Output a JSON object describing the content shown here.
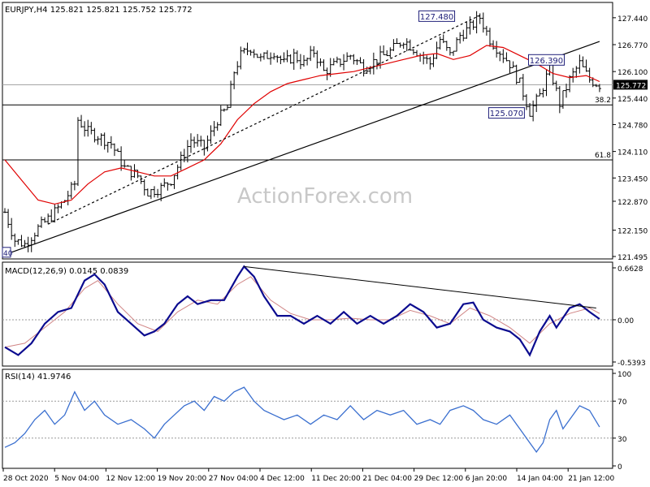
{
  "colors": {
    "background": "#ffffff",
    "frame": "#000000",
    "candles": "#000000",
    "moving_average": "#e00000",
    "macd_main": "#0b0b8f",
    "macd_signal": "#d08585",
    "rsi": "#3a6fcf",
    "grid_dash": "#9a9a9a",
    "watermark": "#c8c8c8",
    "label_box": "#20207a"
  },
  "watermark": "ActionForex.com",
  "chart_data": [
    {
      "type": "candlestick",
      "panel": "price",
      "title": "EURJPY,H4  125.821 125.821 125.752 125.772",
      "y_ticks": [
        "127.440",
        "126.770",
        "126.100",
        "125.440",
        "124.780",
        "124.110",
        "123.450",
        "122.870",
        "122.150",
        "121.495"
      ],
      "ylim": [
        121.495,
        127.72
      ],
      "last_price_label": "125.772",
      "last_price": 125.772,
      "x_range": [
        0,
        180
      ],
      "price_path": [
        [
          0,
          122.6
        ],
        [
          3,
          121.9
        ],
        [
          6,
          121.8
        ],
        [
          10,
          122.2
        ],
        [
          14,
          122.5
        ],
        [
          18,
          122.9
        ],
        [
          21,
          123.3
        ],
        [
          22,
          124.9
        ],
        [
          25,
          124.6
        ],
        [
          28,
          124.5
        ],
        [
          32,
          124.3
        ],
        [
          36,
          123.7
        ],
        [
          40,
          123.5
        ],
        [
          43,
          123.1
        ],
        [
          47,
          123.2
        ],
        [
          50,
          123.4
        ],
        [
          53,
          123.9
        ],
        [
          56,
          124.4
        ],
        [
          60,
          124.2
        ],
        [
          64,
          124.9
        ],
        [
          67,
          125.2
        ],
        [
          69,
          126.1
        ],
        [
          71,
          126.5
        ],
        [
          74,
          126.7
        ],
        [
          77,
          126.4
        ],
        [
          81,
          126.6
        ],
        [
          84,
          126.3
        ],
        [
          87,
          126.5
        ],
        [
          90,
          126.3
        ],
        [
          93,
          126.6
        ],
        [
          96,
          126.1
        ],
        [
          100,
          126.3
        ],
        [
          104,
          126.5
        ],
        [
          108,
          126.2
        ],
        [
          112,
          126.4
        ],
        [
          116,
          126.6
        ],
        [
          120,
          126.9
        ],
        [
          124,
          126.6
        ],
        [
          128,
          126.3
        ],
        [
          131,
          126.9
        ],
        [
          134,
          126.5
        ],
        [
          137,
          127.0
        ],
        [
          140,
          127.2
        ],
        [
          143,
          127.45
        ],
        [
          146,
          126.9
        ],
        [
          149,
          126.6
        ],
        [
          152,
          126.3
        ],
        [
          155,
          125.8
        ],
        [
          158,
          125.1
        ],
        [
          161,
          125.5
        ],
        [
          164,
          126.2
        ],
        [
          167,
          125.3
        ],
        [
          170,
          125.9
        ],
        [
          173,
          126.3
        ],
        [
          176,
          125.9
        ],
        [
          179,
          125.77
        ]
      ],
      "moving_average_path": [
        [
          0,
          123.9
        ],
        [
          5,
          123.4
        ],
        [
          10,
          122.9
        ],
        [
          15,
          122.8
        ],
        [
          20,
          122.9
        ],
        [
          25,
          123.3
        ],
        [
          30,
          123.6
        ],
        [
          35,
          123.7
        ],
        [
          40,
          123.6
        ],
        [
          45,
          123.5
        ],
        [
          50,
          123.5
        ],
        [
          55,
          123.7
        ],
        [
          60,
          123.9
        ],
        [
          65,
          124.3
        ],
        [
          70,
          124.9
        ],
        [
          75,
          125.3
        ],
        [
          80,
          125.6
        ],
        [
          85,
          125.8
        ],
        [
          90,
          125.9
        ],
        [
          95,
          126.0
        ],
        [
          100,
          126.05
        ],
        [
          105,
          126.1
        ],
        [
          110,
          126.2
        ],
        [
          115,
          126.3
        ],
        [
          120,
          126.4
        ],
        [
          125,
          126.5
        ],
        [
          130,
          126.55
        ],
        [
          135,
          126.4
        ],
        [
          140,
          126.5
        ],
        [
          145,
          126.75
        ],
        [
          150,
          126.7
        ],
        [
          155,
          126.5
        ],
        [
          160,
          126.3
        ],
        [
          165,
          126.05
        ],
        [
          170,
          125.95
        ],
        [
          175,
          126.0
        ],
        [
          179,
          125.85
        ]
      ],
      "trendlines": [
        {
          "style": "solid",
          "from": [
            2,
            121.6
          ],
          "to": [
            179,
            126.85
          ]
        },
        {
          "style": "dashed",
          "from": [
            13,
            122.3
          ],
          "to": [
            143,
            127.5
          ]
        }
      ],
      "horizontal_levels": [
        {
          "value": 125.27,
          "label": "38.2"
        },
        {
          "value": 123.9,
          "label": "61.8"
        }
      ],
      "gray_lines": [
        125.772
      ],
      "annotations": [
        {
          "text": "127.480",
          "x": 130,
          "value": 127.48
        },
        {
          "text": "126.390",
          "x": 163,
          "value": 126.39
        },
        {
          "text": "125.070",
          "x": 151,
          "value": 125.07
        }
      ],
      "left_edge_label": "40"
    },
    {
      "type": "line",
      "panel": "macd",
      "title": "MACD(12,26,9) 0.0145 0.0839",
      "y_ticks": [
        "0.6628",
        "0.00",
        "-0.5393"
      ],
      "ylim": [
        -0.5393,
        0.6628
      ],
      "zero_label": "0.00",
      "main_path": [
        [
          0,
          -0.35
        ],
        [
          4,
          -0.45
        ],
        [
          8,
          -0.3
        ],
        [
          12,
          -0.05
        ],
        [
          16,
          0.1
        ],
        [
          20,
          0.15
        ],
        [
          24,
          0.5
        ],
        [
          27,
          0.58
        ],
        [
          30,
          0.45
        ],
        [
          34,
          0.1
        ],
        [
          38,
          -0.05
        ],
        [
          42,
          -0.2
        ],
        [
          45,
          -0.15
        ],
        [
          48,
          -0.05
        ],
        [
          52,
          0.2
        ],
        [
          55,
          0.3
        ],
        [
          58,
          0.2
        ],
        [
          62,
          0.25
        ],
        [
          66,
          0.25
        ],
        [
          70,
          0.55
        ],
        [
          72,
          0.68
        ],
        [
          75,
          0.55
        ],
        [
          78,
          0.3
        ],
        [
          82,
          0.05
        ],
        [
          86,
          0.05
        ],
        [
          90,
          -0.05
        ],
        [
          94,
          0.05
        ],
        [
          98,
          -0.05
        ],
        [
          102,
          0.1
        ],
        [
          106,
          -0.05
        ],
        [
          110,
          0.05
        ],
        [
          114,
          -0.05
        ],
        [
          118,
          0.05
        ],
        [
          122,
          0.2
        ],
        [
          126,
          0.1
        ],
        [
          130,
          -0.1
        ],
        [
          134,
          -0.05
        ],
        [
          138,
          0.2
        ],
        [
          141,
          0.22
        ],
        [
          144,
          0.0
        ],
        [
          148,
          -0.1
        ],
        [
          152,
          -0.15
        ],
        [
          155,
          -0.25
        ],
        [
          158,
          -0.45
        ],
        [
          161,
          -0.15
        ],
        [
          164,
          0.05
        ],
        [
          166,
          -0.1
        ],
        [
          170,
          0.15
        ],
        [
          173,
          0.2
        ],
        [
          176,
          0.1
        ],
        [
          179,
          0.01
        ]
      ],
      "signal_path": [
        [
          0,
          -0.35
        ],
        [
          6,
          -0.3
        ],
        [
          12,
          -0.1
        ],
        [
          18,
          0.1
        ],
        [
          24,
          0.4
        ],
        [
          28,
          0.5
        ],
        [
          34,
          0.2
        ],
        [
          40,
          -0.05
        ],
        [
          46,
          -0.15
        ],
        [
          52,
          0.1
        ],
        [
          58,
          0.25
        ],
        [
          64,
          0.2
        ],
        [
          70,
          0.45
        ],
        [
          74,
          0.55
        ],
        [
          80,
          0.25
        ],
        [
          86,
          0.08
        ],
        [
          92,
          0.0
        ],
        [
          98,
          0.0
        ],
        [
          104,
          0.02
        ],
        [
          110,
          0.0
        ],
        [
          116,
          0.0
        ],
        [
          122,
          0.12
        ],
        [
          128,
          0.05
        ],
        [
          134,
          -0.05
        ],
        [
          140,
          0.15
        ],
        [
          146,
          0.05
        ],
        [
          152,
          -0.1
        ],
        [
          158,
          -0.3
        ],
        [
          164,
          -0.05
        ],
        [
          170,
          0.08
        ],
        [
          176,
          0.15
        ],
        [
          179,
          0.08
        ]
      ],
      "trendline": {
        "from": [
          72,
          0.68
        ],
        "to": [
          178,
          0.15
        ]
      }
    },
    {
      "type": "line",
      "panel": "rsi",
      "title": "RSI(14) 41.9746",
      "y_ticks": [
        "100",
        "70",
        "30",
        "0"
      ],
      "ylim": [
        0,
        100
      ],
      "levels": [
        70,
        30
      ],
      "path": [
        [
          0,
          20
        ],
        [
          3,
          25
        ],
        [
          6,
          35
        ],
        [
          9,
          50
        ],
        [
          12,
          60
        ],
        [
          15,
          45
        ],
        [
          18,
          55
        ],
        [
          21,
          80
        ],
        [
          24,
          60
        ],
        [
          27,
          70
        ],
        [
          30,
          55
        ],
        [
          34,
          45
        ],
        [
          38,
          50
        ],
        [
          42,
          40
        ],
        [
          45,
          30
        ],
        [
          48,
          45
        ],
        [
          51,
          55
        ],
        [
          54,
          65
        ],
        [
          57,
          70
        ],
        [
          60,
          60
        ],
        [
          63,
          75
        ],
        [
          66,
          70
        ],
        [
          69,
          80
        ],
        [
          72,
          85
        ],
        [
          75,
          70
        ],
        [
          78,
          60
        ],
        [
          81,
          55
        ],
        [
          84,
          50
        ],
        [
          88,
          55
        ],
        [
          92,
          45
        ],
        [
          96,
          55
        ],
        [
          100,
          50
        ],
        [
          104,
          65
        ],
        [
          108,
          50
        ],
        [
          112,
          60
        ],
        [
          116,
          55
        ],
        [
          120,
          60
        ],
        [
          124,
          45
        ],
        [
          128,
          50
        ],
        [
          131,
          45
        ],
        [
          134,
          60
        ],
        [
          138,
          65
        ],
        [
          141,
          60
        ],
        [
          144,
          50
        ],
        [
          148,
          45
        ],
        [
          152,
          55
        ],
        [
          155,
          40
        ],
        [
          158,
          25
        ],
        [
          160,
          15
        ],
        [
          162,
          25
        ],
        [
          164,
          50
        ],
        [
          166,
          60
        ],
        [
          168,
          40
        ],
        [
          170,
          50
        ],
        [
          173,
          65
        ],
        [
          176,
          60
        ],
        [
          179,
          42
        ]
      ]
    }
  ],
  "x_axis_labels": [
    "28 Oct 2020",
    "5 Nov 04:00",
    "12 Nov 12:00",
    "19 Nov 20:00",
    "27 Nov 04:00",
    "4 Dec 12:00",
    "11 Dec 20:00",
    "21 Dec 04:00",
    "29 Dec 12:00",
    "6 Jan 20:00",
    "14 Jan 04:00",
    "21 Jan 12:00"
  ]
}
